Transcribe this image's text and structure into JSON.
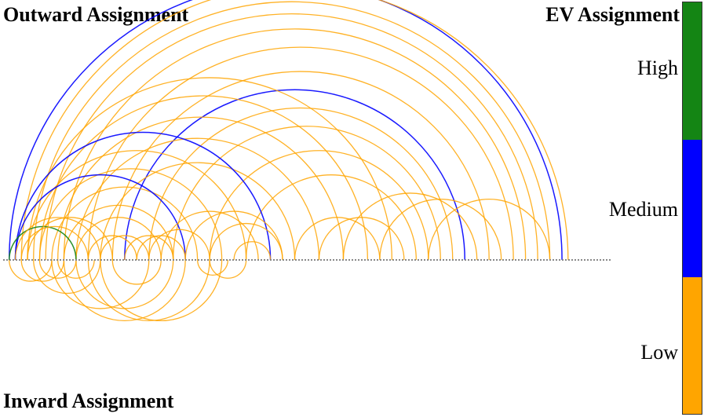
{
  "titles": {
    "outward": "Outward Assignment",
    "inward": "Inward Assignment",
    "legend": "EV Assignment"
  },
  "legend": {
    "levels": [
      {
        "label": "High",
        "color": "#148514"
      },
      {
        "label": "Medium",
        "color": "#0000ff"
      },
      {
        "label": "Low",
        "color": "#ffa500"
      }
    ]
  },
  "colors": {
    "high": "#148514",
    "medium": "#0000ff",
    "low": "#ffa500",
    "axis": "#888888"
  },
  "arcs": [
    {
      "from": 1,
      "to": 92,
      "dir": "out",
      "level": "medium"
    },
    {
      "from": 3,
      "to": 93,
      "dir": "out",
      "level": "low"
    },
    {
      "from": 5,
      "to": 90,
      "dir": "out",
      "level": "low"
    },
    {
      "from": 7,
      "to": 88,
      "dir": "out",
      "level": "low"
    },
    {
      "from": 10,
      "to": 86,
      "dir": "out",
      "level": "low"
    },
    {
      "from": 14,
      "to": 84,
      "dir": "out",
      "level": "low"
    },
    {
      "from": 18,
      "to": 80,
      "dir": "out",
      "level": "low"
    },
    {
      "from": 20,
      "to": 76,
      "dir": "out",
      "level": "medium"
    },
    {
      "from": 24,
      "to": 74,
      "dir": "out",
      "level": "low"
    },
    {
      "from": 28,
      "to": 72,
      "dir": "out",
      "level": "low"
    },
    {
      "from": 34,
      "to": 70,
      "dir": "out",
      "level": "low"
    },
    {
      "from": 40,
      "to": 68,
      "dir": "out",
      "level": "low"
    },
    {
      "from": 4,
      "to": 64,
      "dir": "out",
      "level": "low"
    },
    {
      "from": 6,
      "to": 60,
      "dir": "out",
      "level": "low"
    },
    {
      "from": 9,
      "to": 56,
      "dir": "out",
      "level": "low"
    },
    {
      "from": 12,
      "to": 52,
      "dir": "out",
      "level": "low"
    },
    {
      "from": 16,
      "to": 48,
      "dir": "out",
      "level": "low"
    },
    {
      "from": 2,
      "to": 44,
      "dir": "out",
      "level": "medium"
    },
    {
      "from": 4,
      "to": 40,
      "dir": "out",
      "level": "low"
    },
    {
      "from": 6,
      "to": 36,
      "dir": "out",
      "level": "low"
    },
    {
      "from": 8,
      "to": 32,
      "dir": "out",
      "level": "low"
    },
    {
      "from": 2,
      "to": 30,
      "dir": "out",
      "level": "medium"
    },
    {
      "from": 10,
      "to": 28,
      "dir": "out",
      "level": "low"
    },
    {
      "from": 12,
      "to": 26,
      "dir": "out",
      "level": "low"
    },
    {
      "from": 1,
      "to": 12,
      "dir": "out",
      "level": "high"
    },
    {
      "from": 2,
      "to": 16,
      "dir": "out",
      "level": "low"
    },
    {
      "from": 3,
      "to": 14,
      "dir": "out",
      "level": "low"
    },
    {
      "from": 4,
      "to": 18,
      "dir": "out",
      "level": "low"
    },
    {
      "from": 14,
      "to": 22,
      "dir": "out",
      "level": "low"
    },
    {
      "from": 16,
      "to": 24,
      "dir": "out",
      "level": "low"
    },
    {
      "from": 20,
      "to": 28,
      "dir": "out",
      "level": "low"
    },
    {
      "from": 24,
      "to": 34,
      "dir": "out",
      "level": "low"
    },
    {
      "from": 26,
      "to": 42,
      "dir": "out",
      "level": "low"
    },
    {
      "from": 30,
      "to": 46,
      "dir": "out",
      "level": "low"
    },
    {
      "from": 34,
      "to": 46,
      "dir": "out",
      "level": "low"
    },
    {
      "from": 38,
      "to": 44,
      "dir": "out",
      "level": "low"
    },
    {
      "from": 22,
      "to": 30,
      "dir": "out",
      "level": "low"
    },
    {
      "from": 48,
      "to": 62,
      "dir": "out",
      "level": "low"
    },
    {
      "from": 52,
      "to": 66,
      "dir": "out",
      "level": "low"
    },
    {
      "from": 56,
      "to": 78,
      "dir": "out",
      "level": "low"
    },
    {
      "from": 62,
      "to": 82,
      "dir": "out",
      "level": "low"
    },
    {
      "from": 70,
      "to": 90,
      "dir": "out",
      "level": "low"
    },
    {
      "from": 1,
      "to": 8,
      "dir": "in",
      "level": "low"
    },
    {
      "from": 3,
      "to": 10,
      "dir": "in",
      "level": "low"
    },
    {
      "from": 5,
      "to": 16,
      "dir": "in",
      "level": "low"
    },
    {
      "from": 8,
      "to": 24,
      "dir": "in",
      "level": "low"
    },
    {
      "from": 10,
      "to": 30,
      "dir": "in",
      "level": "low"
    },
    {
      "from": 12,
      "to": 28,
      "dir": "in",
      "level": "low"
    },
    {
      "from": 14,
      "to": 34,
      "dir": "in",
      "level": "low"
    },
    {
      "from": 16,
      "to": 36,
      "dir": "in",
      "level": "low"
    },
    {
      "from": 6,
      "to": 12,
      "dir": "in",
      "level": "low"
    },
    {
      "from": 9,
      "to": 15,
      "dir": "in",
      "level": "low"
    },
    {
      "from": 18,
      "to": 26,
      "dir": "in",
      "level": "low"
    },
    {
      "from": 32,
      "to": 37,
      "dir": "in",
      "level": "low"
    },
    {
      "from": 34,
      "to": 40,
      "dir": "in",
      "level": "low"
    }
  ]
}
